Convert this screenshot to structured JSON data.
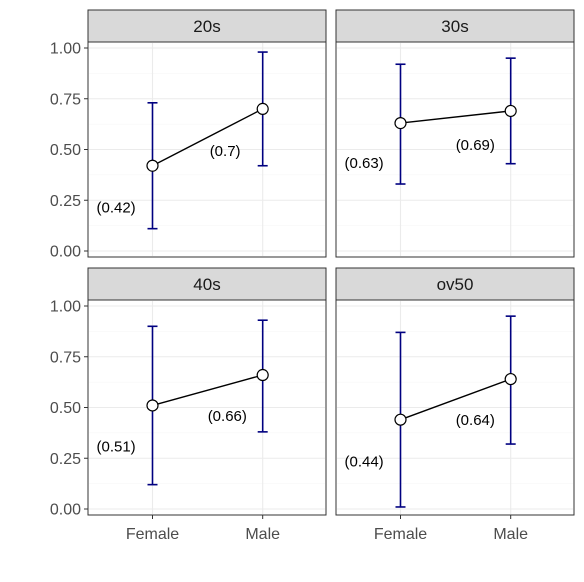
{
  "chart_data": {
    "type": "scatter",
    "x": [
      "Female",
      "Male"
    ],
    "ylim": [
      0,
      1
    ],
    "yticks": [
      "0.00",
      "0.25",
      "0.50",
      "0.75",
      "1.00"
    ],
    "error_bar_color": "#000080",
    "line_color": "#000000",
    "point_fill": "#ffffff",
    "panels": [
      {
        "title": "20s",
        "points": [
          {
            "x": "Female",
            "y": 0.42,
            "lower": 0.11,
            "upper": 0.73,
            "label": "(0.42)"
          },
          {
            "x": "Male",
            "y": 0.7,
            "lower": 0.42,
            "upper": 0.98,
            "label": "(0.7)"
          }
        ]
      },
      {
        "title": "30s",
        "points": [
          {
            "x": "Female",
            "y": 0.63,
            "lower": 0.33,
            "upper": 0.92,
            "label": "(0.63)"
          },
          {
            "x": "Male",
            "y": 0.69,
            "lower": 0.43,
            "upper": 0.95,
            "label": "(0.69)"
          }
        ]
      },
      {
        "title": "40s",
        "points": [
          {
            "x": "Female",
            "y": 0.51,
            "lower": 0.12,
            "upper": 0.9,
            "label": "(0.51)"
          },
          {
            "x": "Male",
            "y": 0.66,
            "lower": 0.38,
            "upper": 0.93,
            "label": "(0.66)"
          }
        ]
      },
      {
        "title": "ov50",
        "points": [
          {
            "x": "Female",
            "y": 0.44,
            "lower": 0.01,
            "upper": 0.87,
            "label": "(0.44)"
          },
          {
            "x": "Male",
            "y": 0.64,
            "lower": 0.32,
            "upper": 0.95,
            "label": "(0.64)"
          }
        ]
      }
    ]
  }
}
